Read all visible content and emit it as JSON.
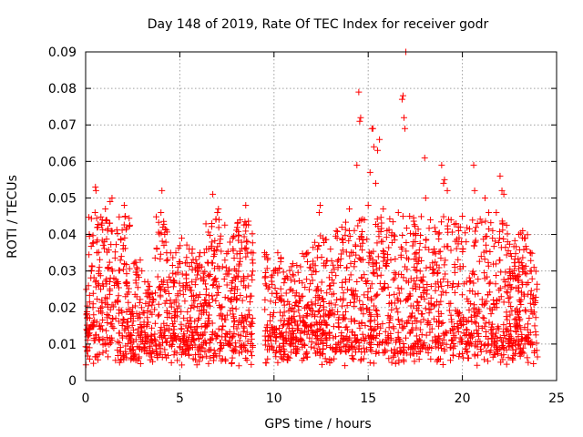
{
  "chart_data": {
    "type": "scatter",
    "title": "Day 148 of 2019, Rate Of TEC Index for receiver godr",
    "xlabel": "GPS time / hours",
    "ylabel": "ROTI / TECUs",
    "xlim": [
      0,
      25
    ],
    "ylim": [
      0,
      0.09
    ],
    "x_ticks": [
      0,
      5,
      10,
      15,
      20,
      25
    ],
    "x_tick_labels": [
      "0",
      "5",
      "10",
      "15",
      "20",
      "25"
    ],
    "y_ticks": [
      0,
      0.01,
      0.02,
      0.03,
      0.04,
      0.05,
      0.06,
      0.07,
      0.08,
      0.09
    ],
    "y_tick_labels": [
      "0",
      "0.01",
      "0.02",
      "0.03",
      "0.04",
      "0.05",
      "0.06",
      "0.07",
      "0.08",
      "0.09"
    ],
    "grid": true,
    "marker": "+",
    "marker_color": "#ff0000",
    "data_gap_hours": [
      8.9,
      9.5
    ],
    "series": [
      {
        "name": "ROTI",
        "points": [
          [
            0.05,
            0.018
          ],
          [
            0.1,
            0.012
          ],
          [
            0.15,
            0.026
          ],
          [
            0.2,
            0.009
          ],
          [
            0.3,
            0.03
          ],
          [
            0.35,
            0.015
          ],
          [
            0.4,
            0.021
          ],
          [
            0.45,
            0.011
          ],
          [
            0.5,
            0.046
          ],
          [
            0.52,
            0.053
          ],
          [
            0.55,
            0.052
          ],
          [
            0.6,
            0.035
          ],
          [
            0.65,
            0.042
          ],
          [
            0.7,
            0.019
          ],
          [
            0.8,
            0.025
          ],
          [
            0.9,
            0.014
          ],
          [
            1.0,
            0.038
          ],
          [
            1.05,
            0.047
          ],
          [
            1.1,
            0.044
          ],
          [
            1.2,
            0.031
          ],
          [
            1.3,
            0.049
          ],
          [
            1.4,
            0.05
          ],
          [
            1.5,
            0.028
          ],
          [
            1.6,
            0.017
          ],
          [
            1.7,
            0.022
          ],
          [
            1.8,
            0.013
          ],
          [
            1.9,
            0.034
          ],
          [
            2.0,
            0.037
          ],
          [
            2.05,
            0.048
          ],
          [
            2.1,
            0.045
          ],
          [
            2.2,
            0.026
          ],
          [
            2.3,
            0.012
          ],
          [
            2.5,
            0.02
          ],
          [
            2.7,
            0.029
          ],
          [
            2.9,
            0.033
          ],
          [
            3.1,
            0.016
          ],
          [
            3.3,
            0.027
          ],
          [
            3.5,
            0.011
          ],
          [
            3.7,
            0.024
          ],
          [
            3.9,
            0.018
          ],
          [
            4.0,
            0.046
          ],
          [
            4.05,
            0.052
          ],
          [
            4.1,
            0.042
          ],
          [
            4.2,
            0.04
          ],
          [
            4.3,
            0.035
          ],
          [
            4.5,
            0.022
          ],
          [
            4.7,
            0.014
          ],
          [
            4.9,
            0.031
          ],
          [
            5.1,
            0.039
          ],
          [
            5.3,
            0.025
          ],
          [
            5.5,
            0.036
          ],
          [
            5.7,
            0.013
          ],
          [
            5.9,
            0.032
          ],
          [
            6.1,
            0.021
          ],
          [
            6.3,
            0.035
          ],
          [
            6.5,
            0.017
          ],
          [
            6.7,
            0.043
          ],
          [
            6.75,
            0.051
          ],
          [
            6.8,
            0.034
          ],
          [
            6.9,
            0.028
          ],
          [
            7.0,
            0.046
          ],
          [
            7.05,
            0.047
          ],
          [
            7.2,
            0.02
          ],
          [
            7.4,
            0.012
          ],
          [
            7.6,
            0.03
          ],
          [
            7.8,
            0.039
          ],
          [
            8.0,
            0.022
          ],
          [
            8.2,
            0.044
          ],
          [
            8.4,
            0.026
          ],
          [
            8.5,
            0.048
          ],
          [
            8.6,
            0.038
          ],
          [
            8.8,
            0.016
          ],
          [
            9.5,
            0.035
          ],
          [
            9.6,
            0.026
          ],
          [
            9.8,
            0.018
          ],
          [
            10.0,
            0.03
          ],
          [
            10.2,
            0.035
          ],
          [
            10.4,
            0.022
          ],
          [
            10.6,
            0.028
          ],
          [
            10.8,
            0.017
          ],
          [
            11.0,
            0.032
          ],
          [
            11.2,
            0.024
          ],
          [
            11.4,
            0.013
          ],
          [
            11.6,
            0.034
          ],
          [
            11.8,
            0.035
          ],
          [
            12.0,
            0.029
          ],
          [
            12.2,
            0.021
          ],
          [
            12.4,
            0.046
          ],
          [
            12.45,
            0.048
          ],
          [
            12.6,
            0.039
          ],
          [
            12.8,
            0.024
          ],
          [
            13.0,
            0.036
          ],
          [
            13.2,
            0.018
          ],
          [
            13.4,
            0.031
          ],
          [
            13.6,
            0.042
          ],
          [
            13.8,
            0.027
          ],
          [
            14.0,
            0.047
          ],
          [
            14.2,
            0.035
          ],
          [
            14.4,
            0.059
          ],
          [
            14.5,
            0.079
          ],
          [
            14.55,
            0.071
          ],
          [
            14.6,
            0.072
          ],
          [
            14.8,
            0.044
          ],
          [
            15.0,
            0.048
          ],
          [
            15.1,
            0.057
          ],
          [
            15.2,
            0.069
          ],
          [
            15.25,
            0.069
          ],
          [
            15.3,
            0.064
          ],
          [
            15.4,
            0.054
          ],
          [
            15.5,
            0.063
          ],
          [
            15.6,
            0.066
          ],
          [
            15.8,
            0.047
          ],
          [
            16.0,
            0.041
          ],
          [
            16.2,
            0.033
          ],
          [
            16.4,
            0.028
          ],
          [
            16.6,
            0.046
          ],
          [
            16.8,
            0.077
          ],
          [
            16.85,
            0.078
          ],
          [
            16.9,
            0.072
          ],
          [
            16.95,
            0.069
          ],
          [
            17.0,
            0.09
          ],
          [
            17.2,
            0.045
          ],
          [
            17.4,
            0.038
          ],
          [
            17.6,
            0.032
          ],
          [
            17.8,
            0.023
          ],
          [
            18.0,
            0.061
          ],
          [
            18.05,
            0.05
          ],
          [
            18.3,
            0.044
          ],
          [
            18.5,
            0.036
          ],
          [
            18.7,
            0.027
          ],
          [
            18.9,
            0.059
          ],
          [
            19.0,
            0.054
          ],
          [
            19.05,
            0.055
          ],
          [
            19.2,
            0.052
          ],
          [
            19.4,
            0.044
          ],
          [
            19.6,
            0.031
          ],
          [
            19.8,
            0.041
          ],
          [
            20.0,
            0.045
          ],
          [
            20.2,
            0.038
          ],
          [
            20.4,
            0.027
          ],
          [
            20.6,
            0.059
          ],
          [
            20.65,
            0.052
          ],
          [
            20.8,
            0.043
          ],
          [
            21.0,
            0.034
          ],
          [
            21.2,
            0.05
          ],
          [
            21.4,
            0.046
          ],
          [
            21.6,
            0.039
          ],
          [
            21.8,
            0.046
          ],
          [
            22.0,
            0.056
          ],
          [
            22.1,
            0.052
          ],
          [
            22.2,
            0.051
          ],
          [
            22.4,
            0.038
          ],
          [
            22.6,
            0.034
          ],
          [
            22.8,
            0.028
          ],
          [
            23.0,
            0.04
          ],
          [
            23.2,
            0.041
          ],
          [
            23.4,
            0.036
          ],
          [
            23.6,
            0.03
          ],
          [
            23.8,
            0.031
          ],
          [
            23.95,
            0.025
          ]
        ]
      }
    ]
  }
}
